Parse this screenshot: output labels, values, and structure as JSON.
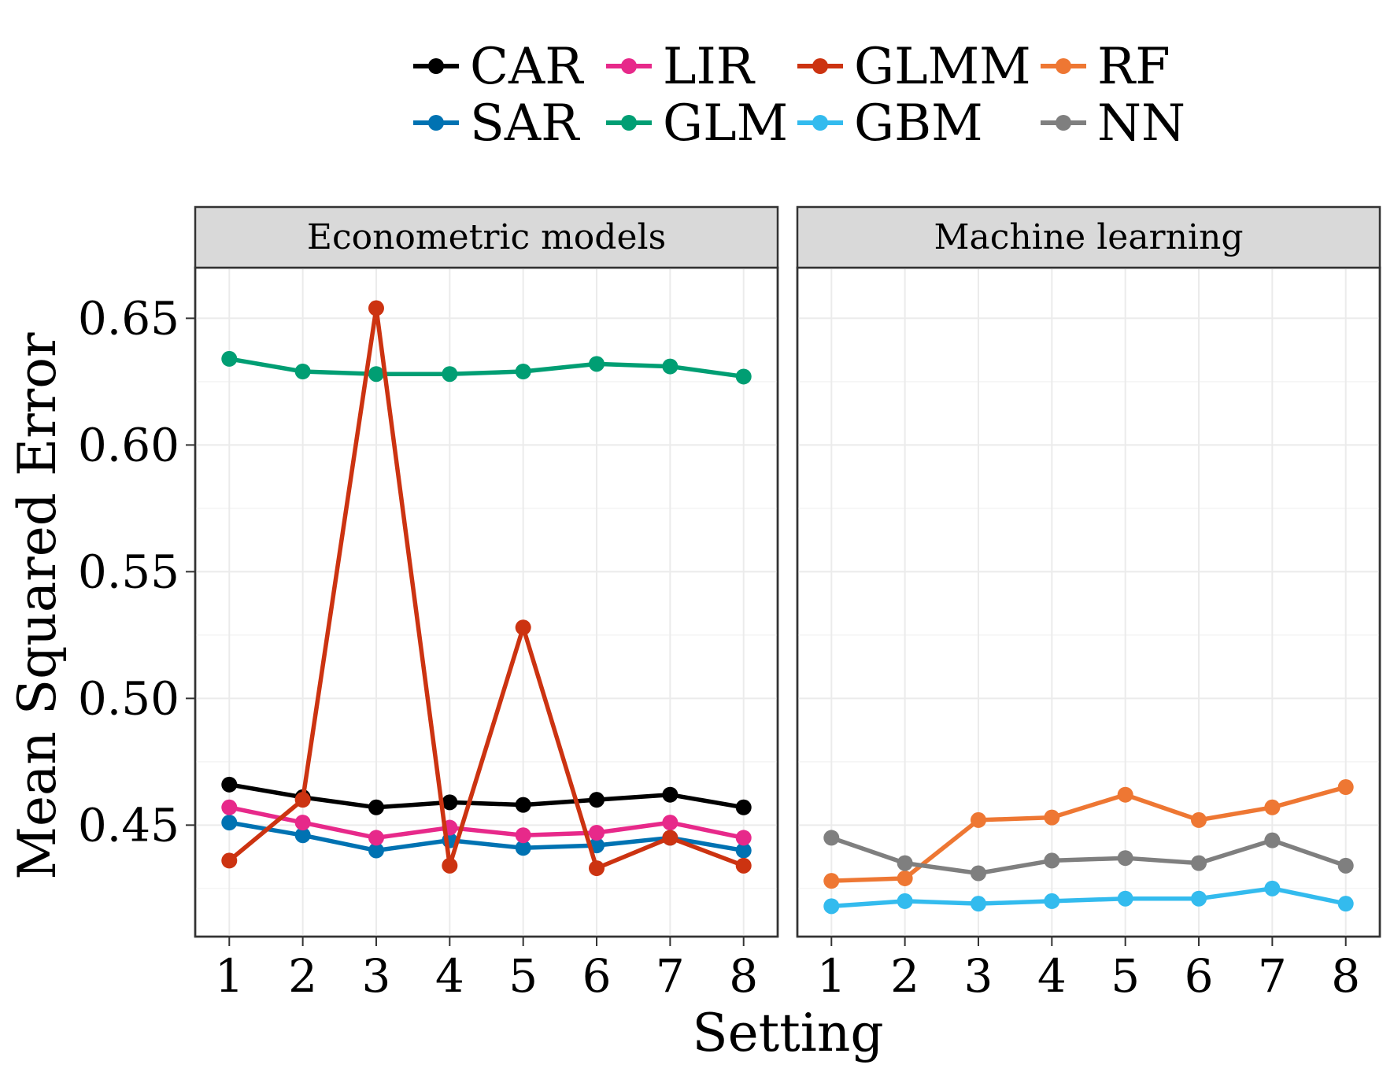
{
  "chart_data": {
    "type": "line",
    "xlabel": "Setting",
    "ylabel": "Mean Squared Error",
    "ylim": [
      0.406,
      0.67
    ],
    "yticks": [
      "0.45",
      "0.50",
      "0.55",
      "0.60",
      "0.65"
    ],
    "legend_position": "top",
    "x": [
      "1",
      "2",
      "3",
      "4",
      "5",
      "6",
      "7",
      "8"
    ],
    "facets": [
      {
        "title": "Econometric models",
        "series": [
          {
            "name": "CAR",
            "color": "#000000",
            "values": [
              0.466,
              0.461,
              0.457,
              0.459,
              0.458,
              0.46,
              0.462,
              0.457
            ]
          },
          {
            "name": "SAR",
            "color": "#0072b2",
            "values": [
              0.451,
              0.446,
              0.44,
              0.444,
              0.441,
              0.442,
              0.445,
              0.44
            ]
          },
          {
            "name": "LIR",
            "color": "#e7298a",
            "values": [
              0.457,
              0.451,
              0.445,
              0.449,
              0.446,
              0.447,
              0.451,
              0.445
            ]
          },
          {
            "name": "GLM",
            "color": "#009e73",
            "values": [
              0.634,
              0.629,
              0.628,
              0.628,
              0.629,
              0.632,
              0.631,
              0.627
            ]
          },
          {
            "name": "GLMM",
            "color": "#cc3311",
            "values": [
              0.436,
              0.46,
              0.654,
              0.434,
              0.528,
              0.433,
              0.445,
              0.434
            ]
          }
        ]
      },
      {
        "title": "Machine learning",
        "series": [
          {
            "name": "GBM",
            "color": "#33bbee",
            "values": [
              0.418,
              0.42,
              0.419,
              0.42,
              0.421,
              0.421,
              0.425,
              0.419
            ]
          },
          {
            "name": "RF",
            "color": "#ee7733",
            "values": [
              0.428,
              0.429,
              0.452,
              0.453,
              0.462,
              0.452,
              0.457,
              0.465
            ]
          },
          {
            "name": "NN",
            "color": "#7f7f7f",
            "values": [
              0.445,
              0.435,
              0.431,
              0.436,
              0.437,
              0.435,
              0.444,
              0.434
            ]
          }
        ]
      }
    ],
    "legend": [
      {
        "name": "CAR",
        "color": "#000000"
      },
      {
        "name": "LIR",
        "color": "#e7298a"
      },
      {
        "name": "GLMM",
        "color": "#cc3311"
      },
      {
        "name": "RF",
        "color": "#ee7733"
      },
      {
        "name": "SAR",
        "color": "#0072b2"
      },
      {
        "name": "GLM",
        "color": "#009e73"
      },
      {
        "name": "GBM",
        "color": "#33bbee"
      },
      {
        "name": "NN",
        "color": "#7f7f7f"
      }
    ]
  }
}
